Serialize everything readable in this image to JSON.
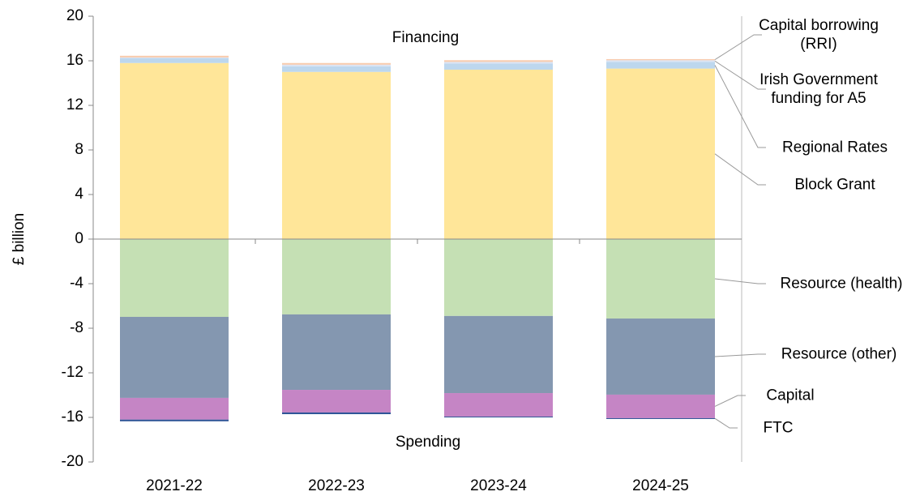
{
  "chart_data": {
    "type": "bar",
    "stacked": true,
    "y_label": "£ billion",
    "annotations": [
      "Financing",
      "Spending"
    ],
    "categories": [
      "2021-22",
      "2022-23",
      "2023-24",
      "2024-25"
    ],
    "series": [
      {
        "name": "Capital borrowing (RRI)",
        "color": "#f8cbad",
        "values": [
          0.15,
          0.15,
          0.15,
          0.1
        ]
      },
      {
        "name": "Irish Government funding for A5",
        "color": "#dae3f3",
        "values": [
          0.05,
          0.15,
          0.15,
          0.15
        ]
      },
      {
        "name": "Regional Rates",
        "color": "#bdd7ee",
        "values": [
          0.45,
          0.5,
          0.55,
          0.6
        ]
      },
      {
        "name": "Block Grant",
        "color": "#ffe699",
        "values": [
          15.8,
          15.0,
          15.2,
          15.3
        ]
      },
      {
        "name": "Resource (health)",
        "color": "#c5e0b4",
        "values": [
          -6.98,
          -6.76,
          -6.9,
          -7.13
        ]
      },
      {
        "name": "Resource (other)",
        "color": "#8497b0",
        "values": [
          -7.27,
          -6.77,
          -6.92,
          -6.83
        ]
      },
      {
        "name": "Capital",
        "color": "#c585c5",
        "values": [
          -1.95,
          -2.03,
          -2.11,
          -2.11
        ]
      },
      {
        "name": "FTC",
        "color": "#2f5597",
        "values": [
          -0.15,
          -0.15,
          -0.05,
          -0.05
        ]
      }
    ],
    "ylim": [
      -20,
      20
    ],
    "yticks": [
      -20,
      -16,
      -12,
      -8,
      -4,
      0,
      4,
      8,
      12,
      16,
      20
    ]
  }
}
